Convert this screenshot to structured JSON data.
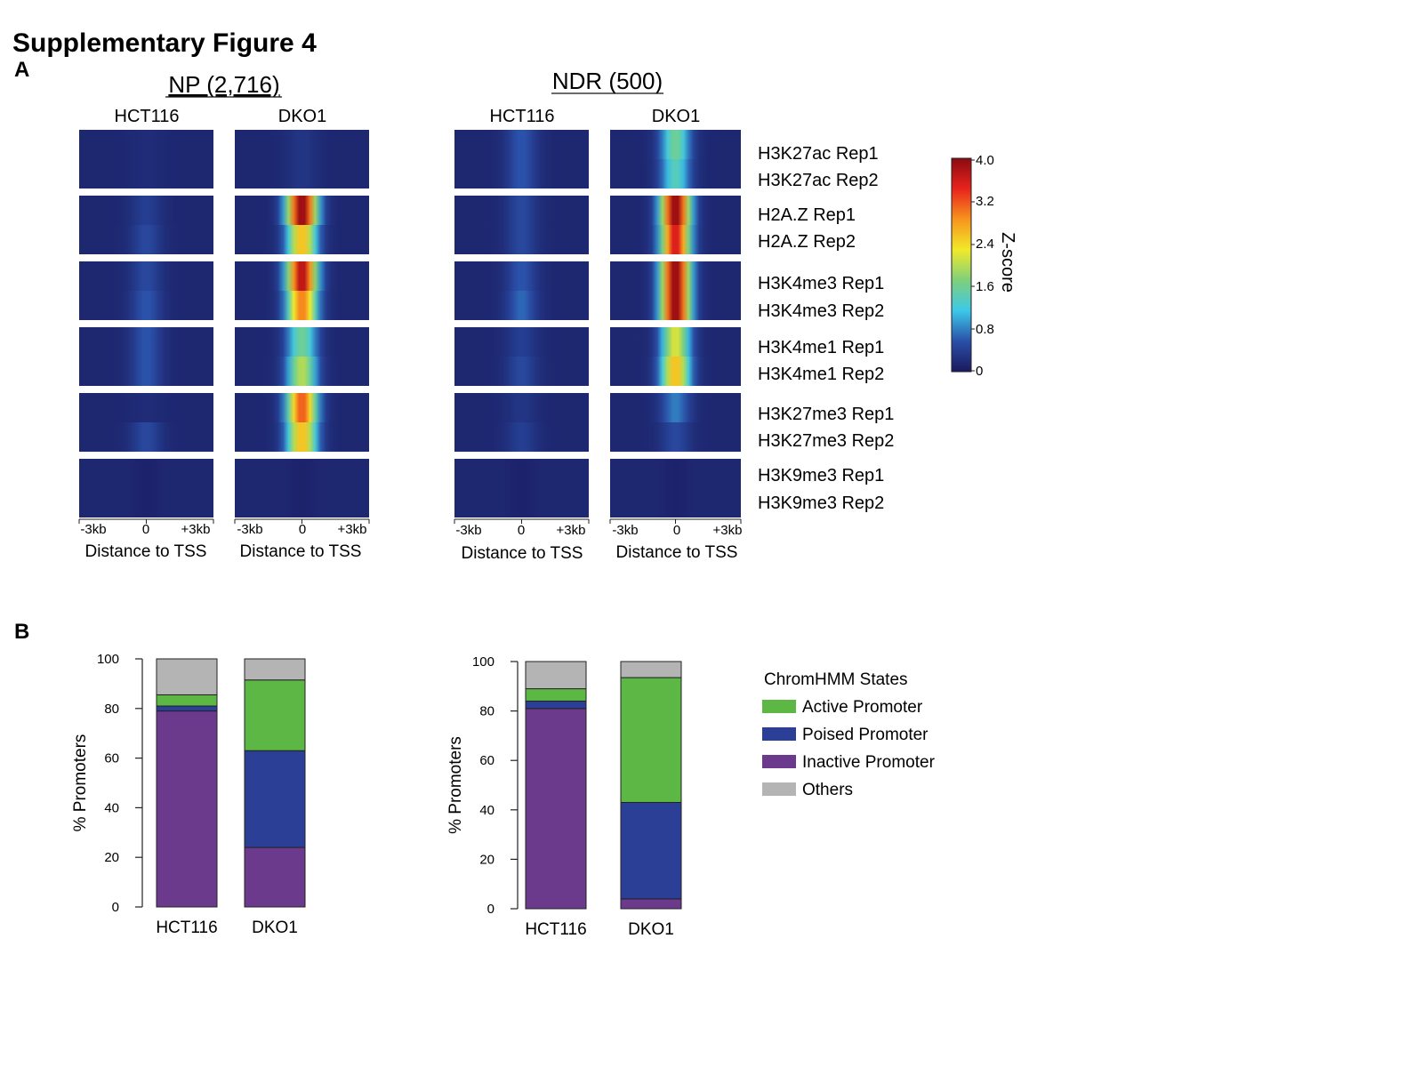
{
  "figure_title": "Supplementary Figure 4",
  "panel_a": {
    "label": "A",
    "groups": [
      {
        "title": "NP (2,716)",
        "samples": [
          "HCT116",
          "DKO1"
        ]
      },
      {
        "title": "NDR (500)",
        "samples": [
          "HCT116",
          "DKO1"
        ]
      }
    ],
    "track_labels": [
      "H3K27ac Rep1",
      "H3K27ac Rep2",
      "H2A.Z Rep1",
      "H2A.Z Rep2",
      "H3K4me3 Rep1",
      "H3K4me3 Rep2",
      "H3K4me1 Rep1",
      "H3K4me1 Rep2",
      "H3K27me3 Rep1",
      "H3K27me3 Rep2",
      "H3K9me3 Rep1",
      "H3K9me3 Rep2"
    ],
    "x_ticks": [
      "-3kb",
      "0",
      "+3kb"
    ],
    "x_label": "Distance to TSS",
    "colorbar": {
      "label": "Z-score",
      "ticks": [
        "4.0",
        "3.2",
        "2.4",
        "1.6",
        "0.8",
        "0"
      ],
      "range": [
        0,
        4.0
      ],
      "colors": [
        "#1a1a5e",
        "#2a4fa8",
        "#3cc8e8",
        "#7fd07a",
        "#f2e92a",
        "#f7941d",
        "#e8231d",
        "#8b0a10"
      ]
    },
    "tss_peak_z": {
      "NP": {
        "HCT116": [
          0.2,
          0.2,
          0.4,
          0.5,
          0.5,
          0.6,
          0.6,
          0.6,
          0.2,
          0.5,
          0.1,
          0.1
        ],
        "DKO1": [
          0.3,
          0.3,
          4.0,
          2.6,
          3.8,
          3.0,
          1.6,
          2.0,
          3.2,
          2.6,
          0.1,
          0.1
        ]
      },
      "NDR": {
        "HCT116": [
          0.6,
          0.6,
          0.5,
          0.5,
          0.6,
          0.7,
          0.4,
          0.5,
          0.3,
          0.4,
          0.1,
          0.1
        ],
        "DKO1": [
          1.6,
          1.4,
          4.0,
          3.6,
          4.0,
          4.0,
          2.2,
          2.6,
          0.8,
          0.5,
          0.1,
          0.1
        ]
      }
    }
  },
  "panel_b": {
    "label": "B",
    "y_label": "% Promoters",
    "y_ticks": [
      "0",
      "20",
      "40",
      "60",
      "80",
      "100"
    ],
    "legend_title": "ChromHMM States",
    "legend": [
      {
        "name": "Active Promoter",
        "color": "#5cb745"
      },
      {
        "name": "Poised Promoter",
        "color": "#2b3f97"
      },
      {
        "name": "Inactive Promoter",
        "color": "#6b3a8c"
      },
      {
        "name": "Others",
        "color": "#b4b4b4"
      }
    ]
  },
  "chart_data": [
    {
      "type": "bar",
      "stacked": true,
      "categories": [
        "HCT116",
        "DKO1"
      ],
      "ylabel": "% Promoters",
      "ylim": [
        0,
        100
      ],
      "series": [
        {
          "name": "Inactive Promoter",
          "values": [
            79,
            24
          ]
        },
        {
          "name": "Poised Promoter",
          "values": [
            2,
            39
          ]
        },
        {
          "name": "Active Promoter",
          "values": [
            4.5,
            28.5
          ]
        },
        {
          "name": "Others",
          "values": [
            14.5,
            8.5
          ]
        }
      ]
    },
    {
      "type": "bar",
      "stacked": true,
      "categories": [
        "HCT116",
        "DKO1"
      ],
      "ylabel": "% Promoters",
      "ylim": [
        0,
        100
      ],
      "series": [
        {
          "name": "Inactive Promoter",
          "values": [
            81,
            4
          ]
        },
        {
          "name": "Poised Promoter",
          "values": [
            3,
            39
          ]
        },
        {
          "name": "Active Promoter",
          "values": [
            5,
            50.5
          ]
        },
        {
          "name": "Others",
          "values": [
            11,
            6.5
          ]
        }
      ]
    }
  ]
}
